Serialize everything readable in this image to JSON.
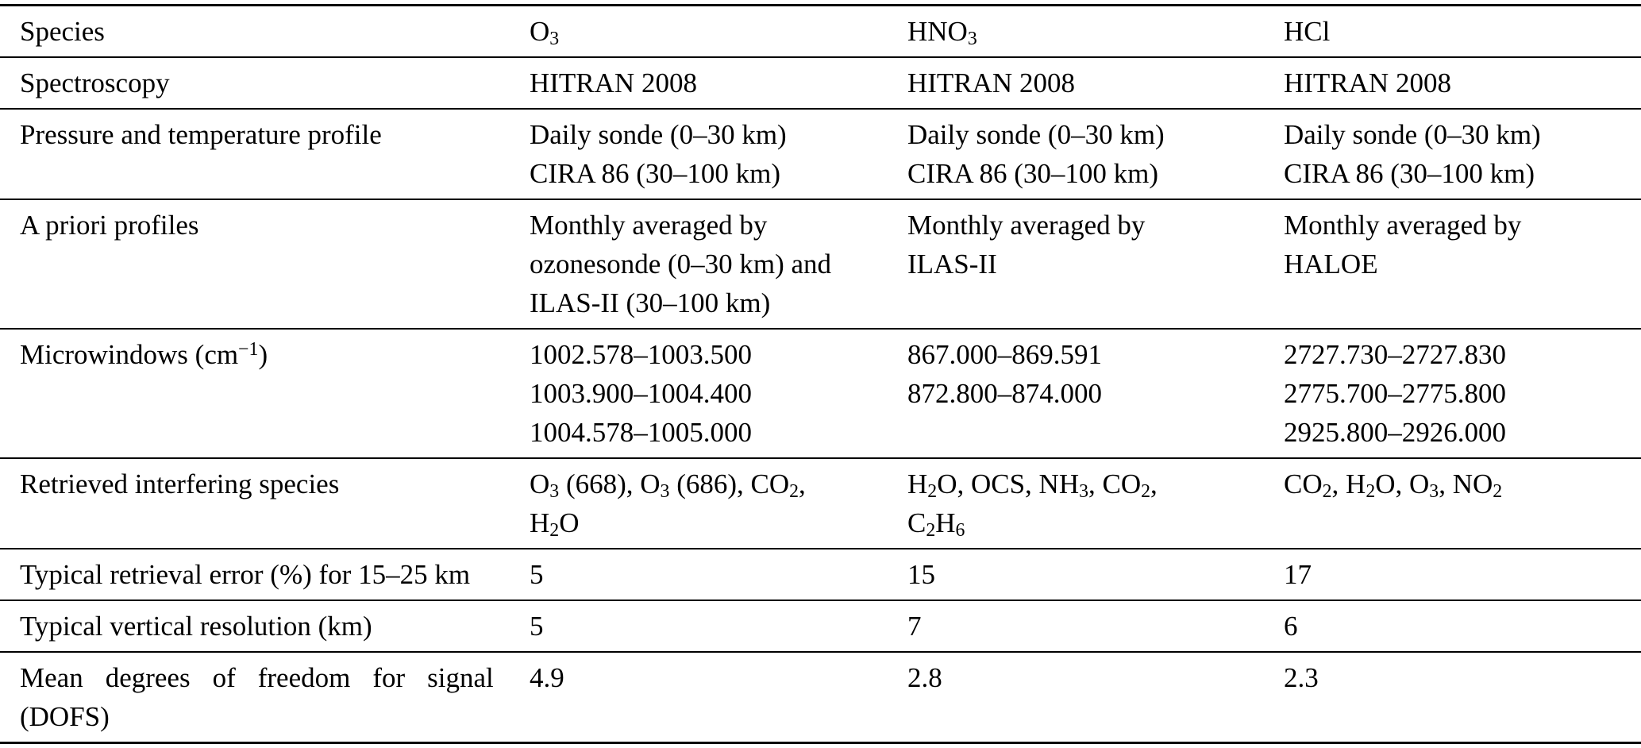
{
  "colors": {
    "text": "#000000",
    "rule": "#000000",
    "background": "#ffffff"
  },
  "table": {
    "description": "Retrieval parameters table for three species",
    "rows": [
      {
        "label": "Species",
        "cols": [
          "O~3~",
          "HNO~3~",
          "HCl"
        ]
      },
      {
        "label": "Spectroscopy",
        "cols": [
          "HITRAN 2008",
          "HITRAN 2008",
          "HITRAN 2008"
        ]
      },
      {
        "label": "Pressure and temperature profile",
        "cols": [
          "Daily sonde (0–30 km)\nCIRA 86 (30–100 km)",
          "Daily sonde (0–30 km)\nCIRA 86 (30–100 km)",
          "Daily sonde (0–30 km)\nCIRA 86 (30–100 km)"
        ]
      },
      {
        "label": "A priori profiles",
        "cols": [
          "Monthly averaged by\nozonesonde (0–30 km) and\nILAS-II (30–100 km)",
          "Monthly averaged by\nILAS-II",
          "Monthly averaged by\nHALOE"
        ]
      },
      {
        "label": "Microwindows (cm^−1^)",
        "cols": [
          "1002.578–1003.500\n1003.900–1004.400\n1004.578–1005.000",
          "867.000–869.591\n872.800–874.000",
          "2727.730–2727.830\n2775.700–2775.800\n2925.800–2926.000"
        ]
      },
      {
        "label": "Retrieved interfering species",
        "cols": [
          "O~3~ (668), O~3~ (686), CO~2~,\nH~2~O",
          "H~2~O, OCS, NH~3~, CO~2~,\nC~2~H~6~",
          "CO~2~, H~2~O, O~3~, NO~2~"
        ]
      },
      {
        "label": "Typical retrieval error (%) for 15–25 km",
        "cols": [
          "5",
          "15",
          "17"
        ]
      },
      {
        "label": "Typical vertical resolution (km)",
        "cols": [
          "5",
          "7",
          "6"
        ]
      },
      {
        "label": "Mean degrees of freedom for signal\n(DOFS)",
        "cols": [
          "4.9",
          "2.8",
          "2.3"
        ]
      }
    ]
  }
}
